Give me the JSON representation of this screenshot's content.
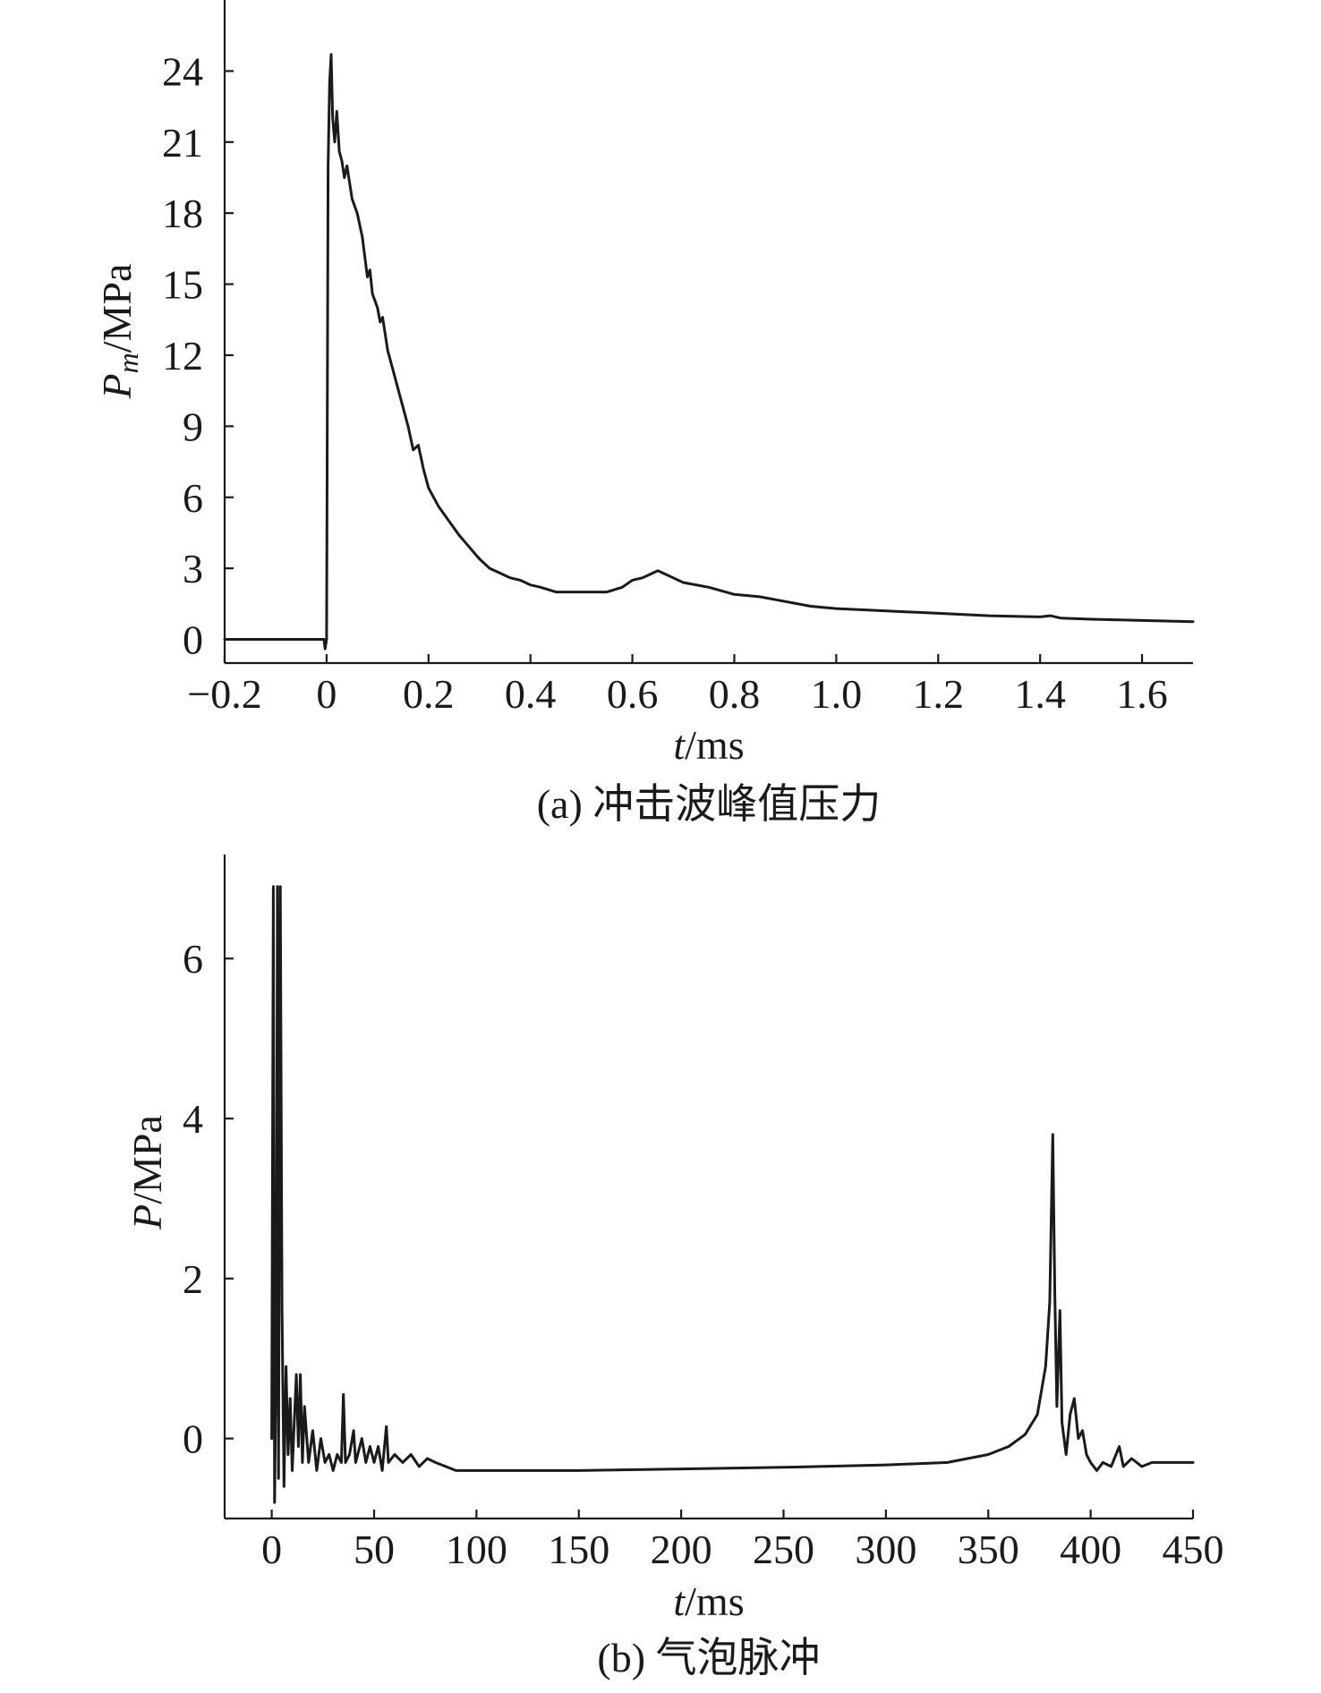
{
  "chart_data": [
    {
      "id": "a",
      "type": "line",
      "caption": "(a) 冲击波峰值压力",
      "xlabel_italic": "t",
      "xlabel_unit": "/ms",
      "ylabel_italic": "P",
      "ylabel_sub": "m",
      "ylabel_unit": "/MPa",
      "xlim": [
        -0.2,
        1.7
      ],
      "ylim": [
        -1,
        27
      ],
      "xticks": [
        -0.2,
        0,
        0.2,
        0.4,
        0.6,
        0.8,
        1.0,
        1.2,
        1.4,
        1.6
      ],
      "xtick_labels": [
        "−0.2",
        "0",
        "0.2",
        "0.4",
        "0.6",
        "0.8",
        "1.0",
        "1.2",
        "1.4",
        "1.6"
      ],
      "yticks": [
        0,
        3,
        6,
        9,
        12,
        15,
        18,
        21,
        24
      ],
      "ytick_labels": [
        "0",
        "3",
        "6",
        "9",
        "12",
        "15",
        "18",
        "21",
        "24"
      ],
      "grid": false,
      "series": [
        {
          "points": [
            [
              -0.2,
              0
            ],
            [
              -0.005,
              0
            ],
            [
              -0.003,
              -0.4
            ],
            [
              0,
              0
            ],
            [
              0.003,
              20
            ],
            [
              0.006,
              23.5
            ],
            [
              0.009,
              24.7
            ],
            [
              0.012,
              22.0
            ],
            [
              0.016,
              21.0
            ],
            [
              0.02,
              22.3
            ],
            [
              0.025,
              20.6
            ],
            [
              0.03,
              20.2
            ],
            [
              0.035,
              19.5
            ],
            [
              0.04,
              20.0
            ],
            [
              0.05,
              18.6
            ],
            [
              0.06,
              18.0
            ],
            [
              0.07,
              17.0
            ],
            [
              0.08,
              15.3
            ],
            [
              0.085,
              15.6
            ],
            [
              0.09,
              14.6
            ],
            [
              0.1,
              14.0
            ],
            [
              0.105,
              13.4
            ],
            [
              0.11,
              13.6
            ],
            [
              0.12,
              12.2
            ],
            [
              0.13,
              11.4
            ],
            [
              0.14,
              10.6
            ],
            [
              0.15,
              9.8
            ],
            [
              0.16,
              9.0
            ],
            [
              0.17,
              8.0
            ],
            [
              0.18,
              8.2
            ],
            [
              0.19,
              7.2
            ],
            [
              0.2,
              6.4
            ],
            [
              0.21,
              6.0
            ],
            [
              0.22,
              5.6
            ],
            [
              0.24,
              5.0
            ],
            [
              0.26,
              4.4
            ],
            [
              0.28,
              3.9
            ],
            [
              0.3,
              3.4
            ],
            [
              0.32,
              3.0
            ],
            [
              0.34,
              2.8
            ],
            [
              0.36,
              2.6
            ],
            [
              0.38,
              2.5
            ],
            [
              0.4,
              2.3
            ],
            [
              0.42,
              2.2
            ],
            [
              0.45,
              2.0
            ],
            [
              0.48,
              2.0
            ],
            [
              0.5,
              2.0
            ],
            [
              0.55,
              2.0
            ],
            [
              0.58,
              2.2
            ],
            [
              0.6,
              2.5
            ],
            [
              0.62,
              2.6
            ],
            [
              0.64,
              2.8
            ],
            [
              0.65,
              2.9
            ],
            [
              0.66,
              2.8
            ],
            [
              0.68,
              2.6
            ],
            [
              0.7,
              2.4
            ],
            [
              0.75,
              2.2
            ],
            [
              0.8,
              1.9
            ],
            [
              0.85,
              1.8
            ],
            [
              0.9,
              1.6
            ],
            [
              0.95,
              1.4
            ],
            [
              1.0,
              1.3
            ],
            [
              1.1,
              1.2
            ],
            [
              1.2,
              1.1
            ],
            [
              1.3,
              1.0
            ],
            [
              1.4,
              0.95
            ],
            [
              1.42,
              1.0
            ],
            [
              1.44,
              0.9
            ],
            [
              1.5,
              0.85
            ],
            [
              1.6,
              0.8
            ],
            [
              1.7,
              0.75
            ]
          ]
        }
      ]
    },
    {
      "id": "b",
      "type": "line",
      "caption": "(b) 气泡脉冲",
      "xlabel_italic": "t",
      "xlabel_unit": "/ms",
      "ylabel_italic": "P",
      "ylabel_sub": "",
      "ylabel_unit": "/MPa",
      "xlim": [
        -23,
        450
      ],
      "ylim": [
        -1,
        7.3
      ],
      "xticks": [
        0,
        50,
        100,
        150,
        200,
        250,
        300,
        350,
        400,
        450
      ],
      "xtick_labels": [
        "0",
        "50",
        "100",
        "150",
        "200",
        "250",
        "300",
        "350",
        "400",
        "450"
      ],
      "yticks": [
        0,
        2,
        4,
        6
      ],
      "ytick_labels": [
        "0",
        "2",
        "4",
        "6"
      ],
      "grid": false,
      "series": [
        {
          "points": [
            [
              0,
              0
            ],
            [
              0.8,
              6.9
            ],
            [
              1.4,
              -0.8
            ],
            [
              2.2,
              1.0
            ],
            [
              2.8,
              6.9
            ],
            [
              3.3,
              -0.5
            ],
            [
              4.2,
              6.9
            ],
            [
              5,
              1.6
            ],
            [
              6,
              -0.6
            ],
            [
              7,
              0.9
            ],
            [
              8,
              -0.2
            ],
            [
              9,
              0.5
            ],
            [
              10,
              -0.4
            ],
            [
              11,
              0.2
            ],
            [
              12,
              0.8
            ],
            [
              13,
              -0.1
            ],
            [
              14,
              0.8
            ],
            [
              15,
              -0.3
            ],
            [
              16,
              0.4
            ],
            [
              18,
              -0.3
            ],
            [
              20,
              0.1
            ],
            [
              22,
              -0.4
            ],
            [
              24,
              0.0
            ],
            [
              26,
              -0.3
            ],
            [
              28,
              -0.2
            ],
            [
              30,
              -0.4
            ],
            [
              32,
              -0.2
            ],
            [
              34,
              -0.3
            ],
            [
              35,
              0.55
            ],
            [
              36,
              -0.3
            ],
            [
              38,
              -0.2
            ],
            [
              40,
              0.1
            ],
            [
              41,
              -0.3
            ],
            [
              44,
              0.0
            ],
            [
              46,
              -0.3
            ],
            [
              48,
              -0.1
            ],
            [
              50,
              -0.3
            ],
            [
              52,
              -0.1
            ],
            [
              54,
              -0.4
            ],
            [
              56,
              0.15
            ],
            [
              57,
              -0.3
            ],
            [
              60,
              -0.2
            ],
            [
              64,
              -0.3
            ],
            [
              68,
              -0.2
            ],
            [
              72,
              -0.35
            ],
            [
              76,
              -0.25
            ],
            [
              80,
              -0.3
            ],
            [
              85,
              -0.35
            ],
            [
              90,
              -0.4
            ],
            [
              100,
              -0.4
            ],
            [
              125,
              -0.4
            ],
            [
              150,
              -0.4
            ],
            [
              200,
              -0.38
            ],
            [
              250,
              -0.36
            ],
            [
              300,
              -0.33
            ],
            [
              330,
              -0.3
            ],
            [
              350,
              -0.2
            ],
            [
              360,
              -0.1
            ],
            [
              368,
              0.05
            ],
            [
              374,
              0.3
            ],
            [
              378,
              0.9
            ],
            [
              380,
              1.7
            ],
            [
              381.5,
              3.8
            ],
            [
              382.5,
              1.8
            ],
            [
              383.5,
              0.4
            ],
            [
              385,
              1.6
            ],
            [
              386,
              0.2
            ],
            [
              388,
              -0.2
            ],
            [
              390,
              0.3
            ],
            [
              392,
              0.5
            ],
            [
              394,
              0.0
            ],
            [
              396,
              0.1
            ],
            [
              398,
              -0.2
            ],
            [
              400,
              -0.3
            ],
            [
              403,
              -0.4
            ],
            [
              406,
              -0.3
            ],
            [
              410,
              -0.35
            ],
            [
              414,
              -0.1
            ],
            [
              416,
              -0.35
            ],
            [
              420,
              -0.25
            ],
            [
              425,
              -0.35
            ],
            [
              430,
              -0.3
            ],
            [
              440,
              -0.3
            ],
            [
              450,
              -0.3
            ]
          ]
        }
      ]
    }
  ]
}
